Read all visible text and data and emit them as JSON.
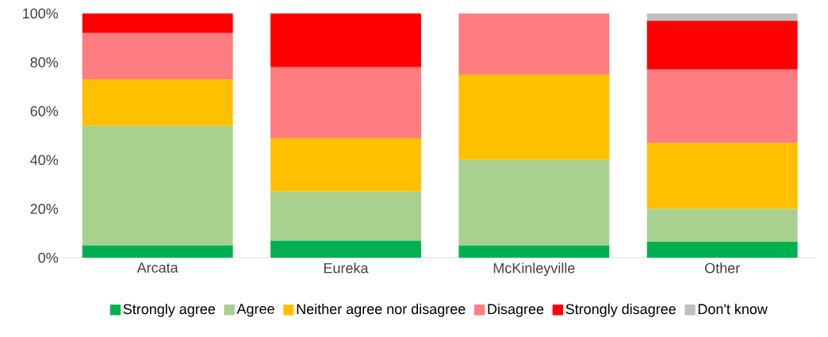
{
  "chart_data": {
    "type": "bar",
    "stacked": true,
    "categories": [
      "Arcata",
      "Eureka",
      "McKinleyville",
      "Other"
    ],
    "series": [
      {
        "name": "Strongly agree",
        "color": "#00b050",
        "values": [
          5,
          7,
          5,
          6.5
        ]
      },
      {
        "name": "Agree",
        "color": "#a9d18e",
        "values": [
          49,
          20,
          35,
          13.5
        ]
      },
      {
        "name": "Neither agree nor disagree",
        "color": "#ffc000",
        "values": [
          19,
          22,
          35,
          27
        ]
      },
      {
        "name": "Disagree",
        "color": "#ff7c80",
        "values": [
          19,
          29,
          25,
          30
        ]
      },
      {
        "name": "Strongly disagree",
        "color": "#ff0000",
        "values": [
          8,
          22,
          0,
          20
        ]
      },
      {
        "name": "Don't know",
        "color": "#bfbfbf",
        "values": [
          0,
          0,
          0,
          3
        ]
      }
    ],
    "ylim": [
      0,
      100
    ],
    "yticks": [
      {
        "value": 0,
        "label": "0%"
      },
      {
        "value": 20,
        "label": "20%"
      },
      {
        "value": 40,
        "label": "40%"
      },
      {
        "value": 60,
        "label": "60%"
      },
      {
        "value": 80,
        "label": "80%"
      },
      {
        "value": 100,
        "label": "100%"
      }
    ],
    "legend": "bottom"
  }
}
